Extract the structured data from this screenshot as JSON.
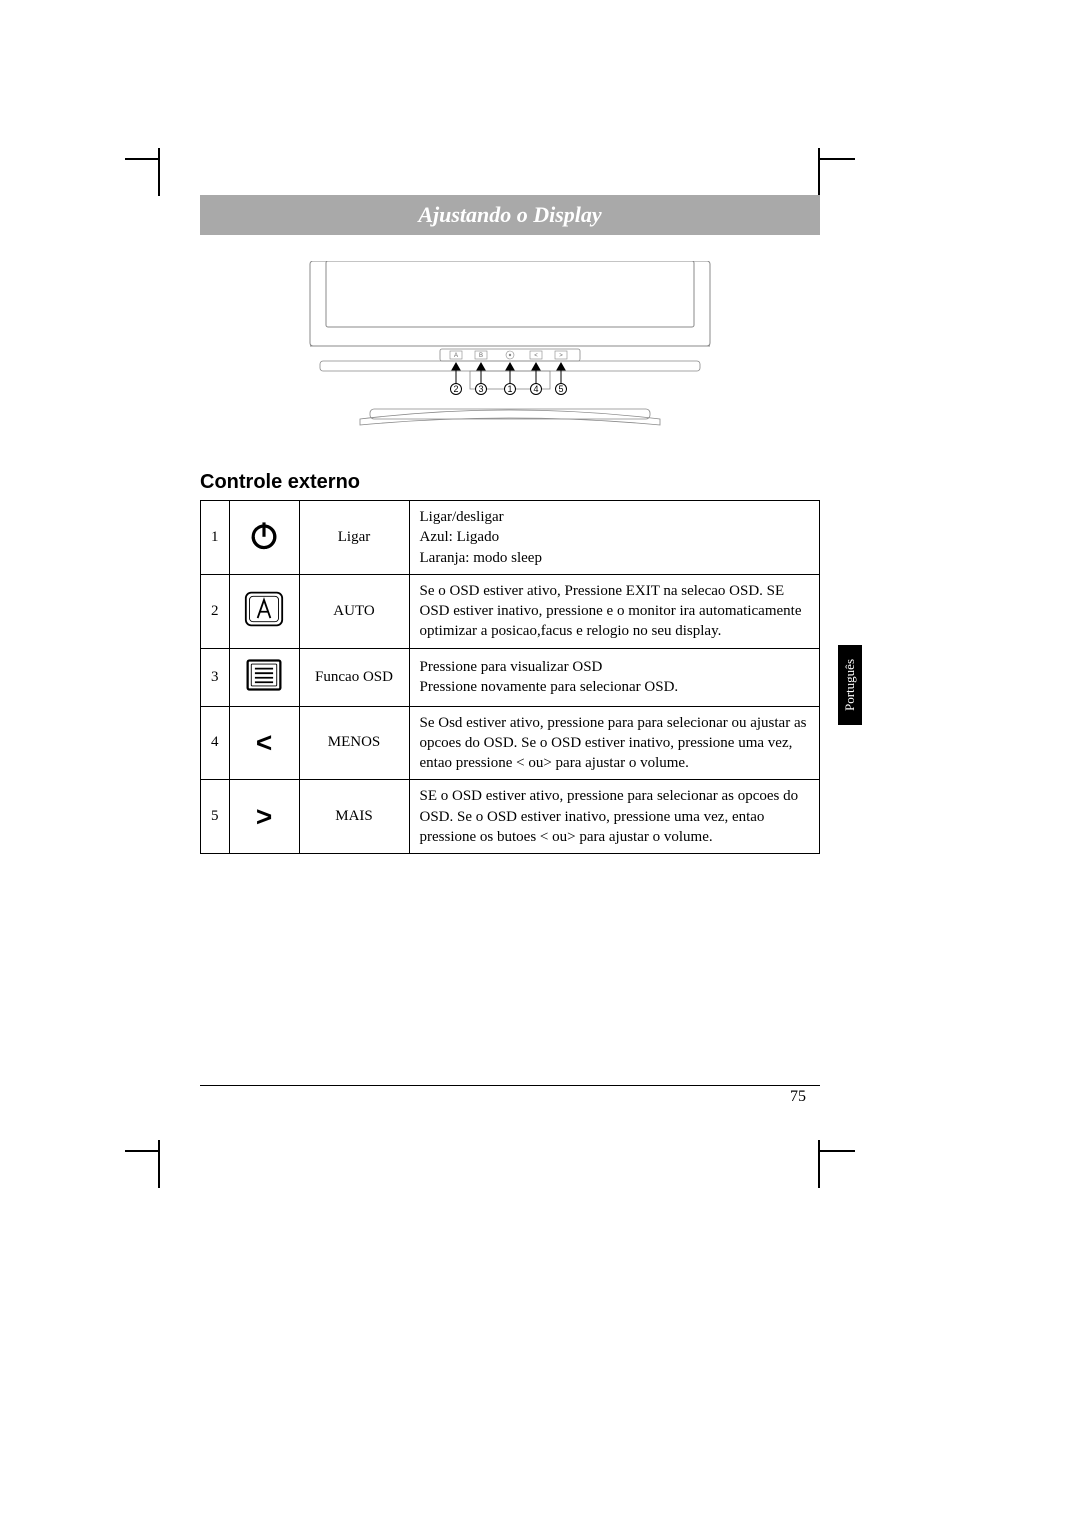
{
  "title": "Ajustando o Display",
  "section_title": "Controle externo",
  "side_tab": "Português",
  "page_number": "75",
  "monitor": {
    "button_labels": [
      "A",
      "B",
      "",
      "<",
      ">"
    ],
    "arrow_labels": [
      "2",
      "3",
      "1",
      "4",
      "5"
    ]
  },
  "rows": [
    {
      "num": "1",
      "icon": "power",
      "label": "Ligar",
      "desc_lines": [
        "Ligar/desligar",
        "Azul: Ligado",
        "Laranja: modo sleep"
      ]
    },
    {
      "num": "2",
      "icon": "auto",
      "label": "AUTO",
      "desc_lines": [
        "Se o OSD estiver ativo, Pressione EXIT na selecao OSD. SE OSD estiver inativo, pressione e  o monitor ira automaticamente optimizar a posicao,facus e relogio no seu display."
      ]
    },
    {
      "num": "3",
      "icon": "menu",
      "label": "Funcao OSD",
      "desc_lines": [
        "Pressione para visualizar OSD",
        "Pressione novamente para selecionar OSD."
      ]
    },
    {
      "num": "4",
      "icon": "less",
      "label": "MENOS",
      "desc_lines": [
        "Se Osd estiver ativo, pressione para para selecionar ou ajustar as opcoes do OSD. Se o OSD estiver inativo, pressione uma vez, entao pressione < ou> para ajustar o volume."
      ]
    },
    {
      "num": "5",
      "icon": "more",
      "label": "MAIS",
      "desc_lines": [
        "SE o OSD estiver ativo, pressione para selecionar as opcoes do OSD. Se o OSD estiver inativo, pressione uma vez, entao pressione os butoes < ou> para ajustar o volume."
      ]
    }
  ],
  "colors": {
    "title_bg": "#a9a9a9",
    "title_fg": "#ffffff",
    "tab_bg": "#000000",
    "tab_fg": "#ffffff",
    "border": "#000000"
  }
}
